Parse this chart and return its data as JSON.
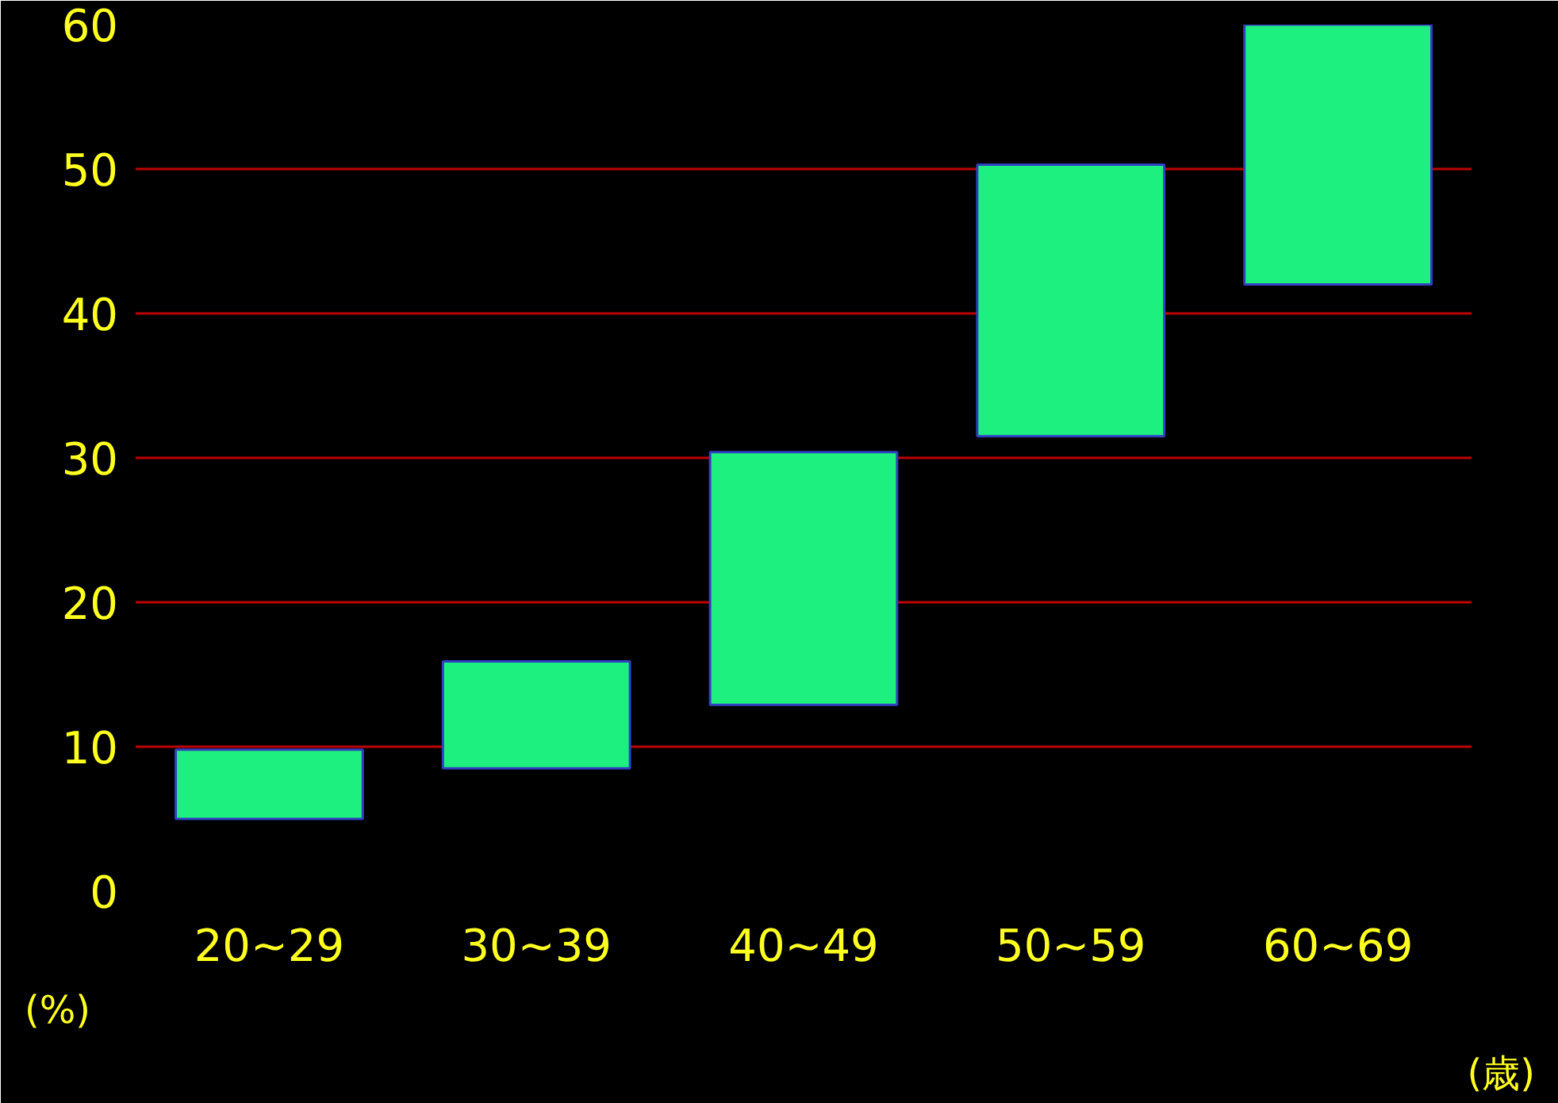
{
  "chart_data": {
    "type": "bar",
    "categories": [
      "20~29",
      "30~39",
      "40~49",
      "50~59",
      "60~69"
    ],
    "values": [
      4.8,
      7.4,
      17.5,
      18.8,
      18
    ],
    "base": [
      5,
      8.5,
      12.9,
      31.5,
      42
    ],
    "color": "#1ef07f",
    "xlabel": "(歳)",
    "ylabel": "(%)",
    "ylim": [
      0,
      60
    ],
    "yticks": [
      0,
      10,
      20,
      30,
      40,
      50,
      60
    ],
    "grid": "y"
  }
}
